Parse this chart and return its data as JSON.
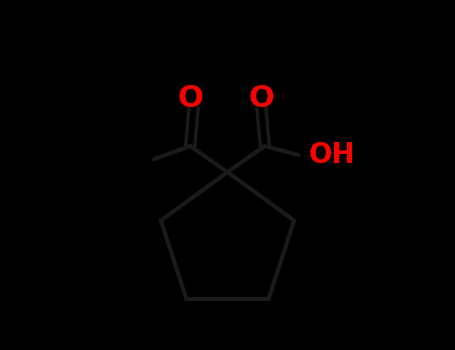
{
  "background_color": "#000000",
  "bond_color": "#1a1a1a",
  "line_color": "#1a1a1a",
  "atom_colors": {
    "O": "#ff0000",
    "C": "#1a1a1a",
    "H": "#1a1a1a"
  },
  "bond_width": 3.0,
  "figsize": [
    4.55,
    3.5
  ],
  "dpi": 100,
  "font_size_O": 22,
  "font_size_OH": 20
}
